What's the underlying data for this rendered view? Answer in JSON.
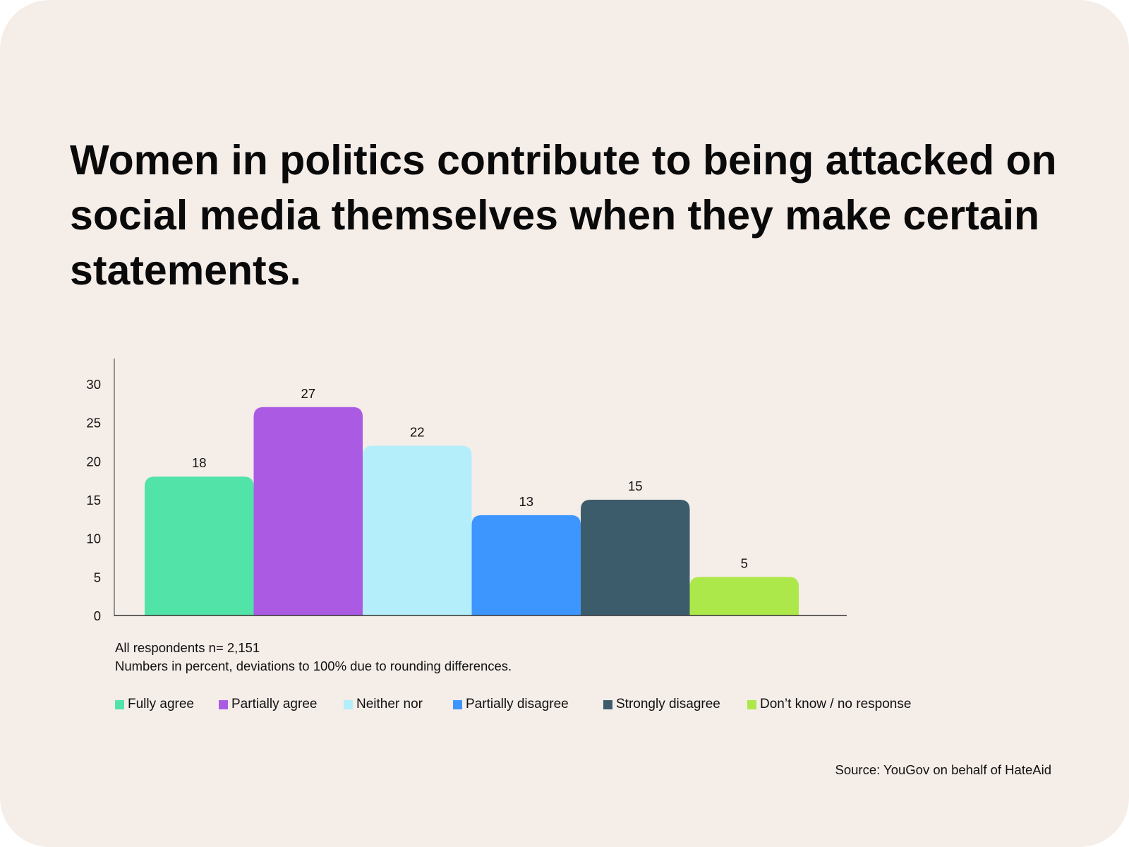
{
  "title": "Women in politics contribute to being attacked on social media themselves when they make certain statements.",
  "notes": {
    "respondents": "All respondents n= 2,151",
    "percent_note": "Numbers in percent, deviations to 100% due to rounding differences."
  },
  "source": "Source: YouGov on behalf of HateAid",
  "chart_data": {
    "type": "bar",
    "categories": [
      "Fully agree",
      "Partially agree",
      "Neither nor",
      "Partially disagree",
      "Strongly disagree",
      "Don’t know / no response"
    ],
    "values": [
      18,
      27,
      22,
      13,
      15,
      5
    ],
    "data_labels": [
      "18",
      "27",
      "22",
      "13",
      "15",
      "5"
    ],
    "colors": [
      "#52e3a8",
      "#ab5ae3",
      "#b4eefb",
      "#3c96fe",
      "#3c5c6c",
      "#ade84a"
    ],
    "ylim": [
      0,
      30
    ],
    "yticks": [
      0,
      5,
      10,
      15,
      20,
      25,
      30
    ],
    "ytick_labels": [
      "0",
      "5",
      "10",
      "15",
      "20",
      "25",
      "30"
    ],
    "xlabel": "",
    "ylabel": "",
    "grid": false,
    "legend_position": "bottom"
  }
}
